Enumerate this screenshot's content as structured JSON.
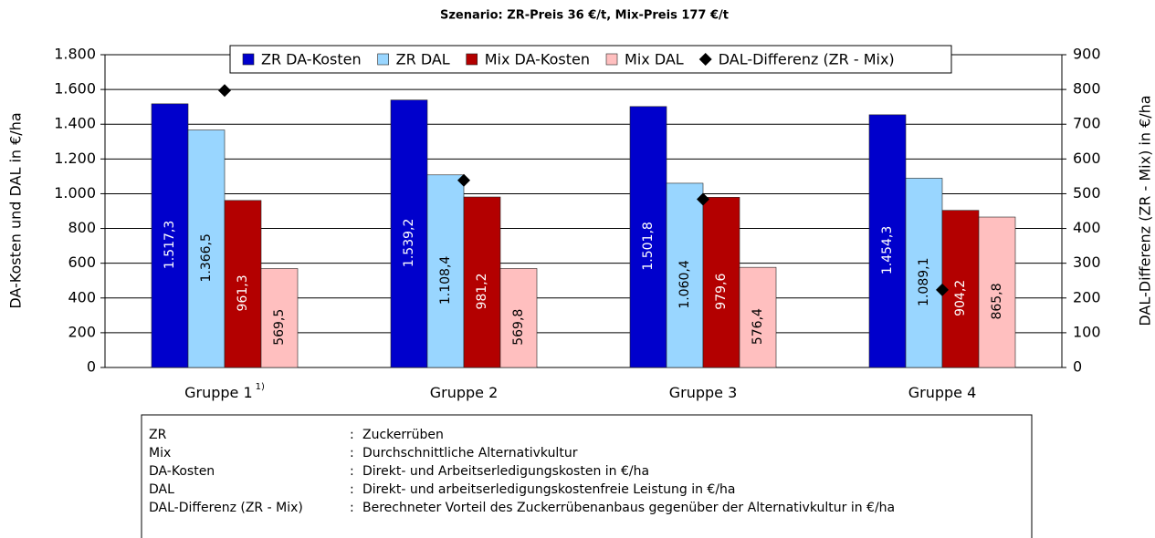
{
  "chart_data": {
    "type": "bar",
    "title": "Szenario: ZR-Preis 36 €/t, Mix-Preis 177 €/t",
    "y_label": "DA-Kosten und DAL in €/ha",
    "y2_label": "DAL-Differenz (ZR - Mix) in €/ha",
    "categories": [
      "Gruppe 1",
      "Gruppe 2",
      "Gruppe 3",
      "Gruppe 4"
    ],
    "category_superscripts": [
      "1)",
      null,
      null,
      null
    ],
    "series": [
      {
        "name": "ZR DA-Kosten",
        "color": "#0000cc",
        "label_color": "#ffffff",
        "values": [
          1517.3,
          1539.2,
          1501.8,
          1454.3
        ],
        "value_labels": [
          "1.517,3",
          "1.539,2",
          "1.501,8",
          "1.454,3"
        ]
      },
      {
        "name": "ZR DAL",
        "color": "#99d6ff",
        "label_color": "#000000",
        "values": [
          1366.5,
          1108.4,
          1060.4,
          1089.1
        ],
        "value_labels": [
          "1.366,5",
          "1.108,4",
          "1.060,4",
          "1.089,1"
        ]
      },
      {
        "name": "Mix DA-Kosten",
        "color": "#b30000",
        "label_color": "#ffffff",
        "values": [
          961.3,
          981.2,
          979.6,
          904.2
        ],
        "value_labels": [
          "961,3",
          "981,2",
          "979,6",
          "904,2"
        ]
      },
      {
        "name": "Mix DAL",
        "color": "#ffbfbf",
        "label_color": "#000000",
        "values": [
          569.5,
          569.8,
          576.4,
          865.8
        ],
        "value_labels": [
          "569,5",
          "569,8",
          "576,4",
          "865,8"
        ]
      },
      {
        "name": "DAL-Differenz (ZR - Mix)",
        "type": "scatter",
        "marker": "diamond",
        "color": "#000000",
        "axis": "y2",
        "values": [
          797,
          538.6,
          484,
          223.3
        ]
      }
    ],
    "ylim": [
      0,
      1800
    ],
    "yticks": [
      0,
      200,
      400,
      600,
      800,
      {
        "value": 1000,
        "label": "1.000"
      },
      {
        "value": 1200,
        "label": "1.200"
      },
      {
        "value": 1400,
        "label": "1.400"
      },
      {
        "value": 1600,
        "label": "1.600"
      },
      {
        "value": 1800,
        "label": "1.800"
      }
    ],
    "y2lim": [
      0,
      900
    ],
    "y2ticks": [
      0,
      100,
      200,
      300,
      400,
      500,
      600,
      700,
      800,
      900
    ],
    "grid": true,
    "legend": "top"
  },
  "glossary": {
    "separator": ":",
    "rows": [
      {
        "term": "ZR",
        "description": "Zuckerrüben"
      },
      {
        "term": "Mix",
        "description": "Durchschnittliche Alternativkultur"
      },
      {
        "term": "DA-Kosten",
        "description": "Direkt- und Arbeitserledigungskosten in €/ha"
      },
      {
        "term": "DAL",
        "description": "Direkt- und arbeitserledigungskostenfreie Leistung in €/ha"
      },
      {
        "term": "DAL-Differenz (ZR - Mix)",
        "description": "Berechneter Vorteil des Zuckerrübenanbaus gegenüber der Alternativkultur in €/ha"
      }
    ]
  }
}
